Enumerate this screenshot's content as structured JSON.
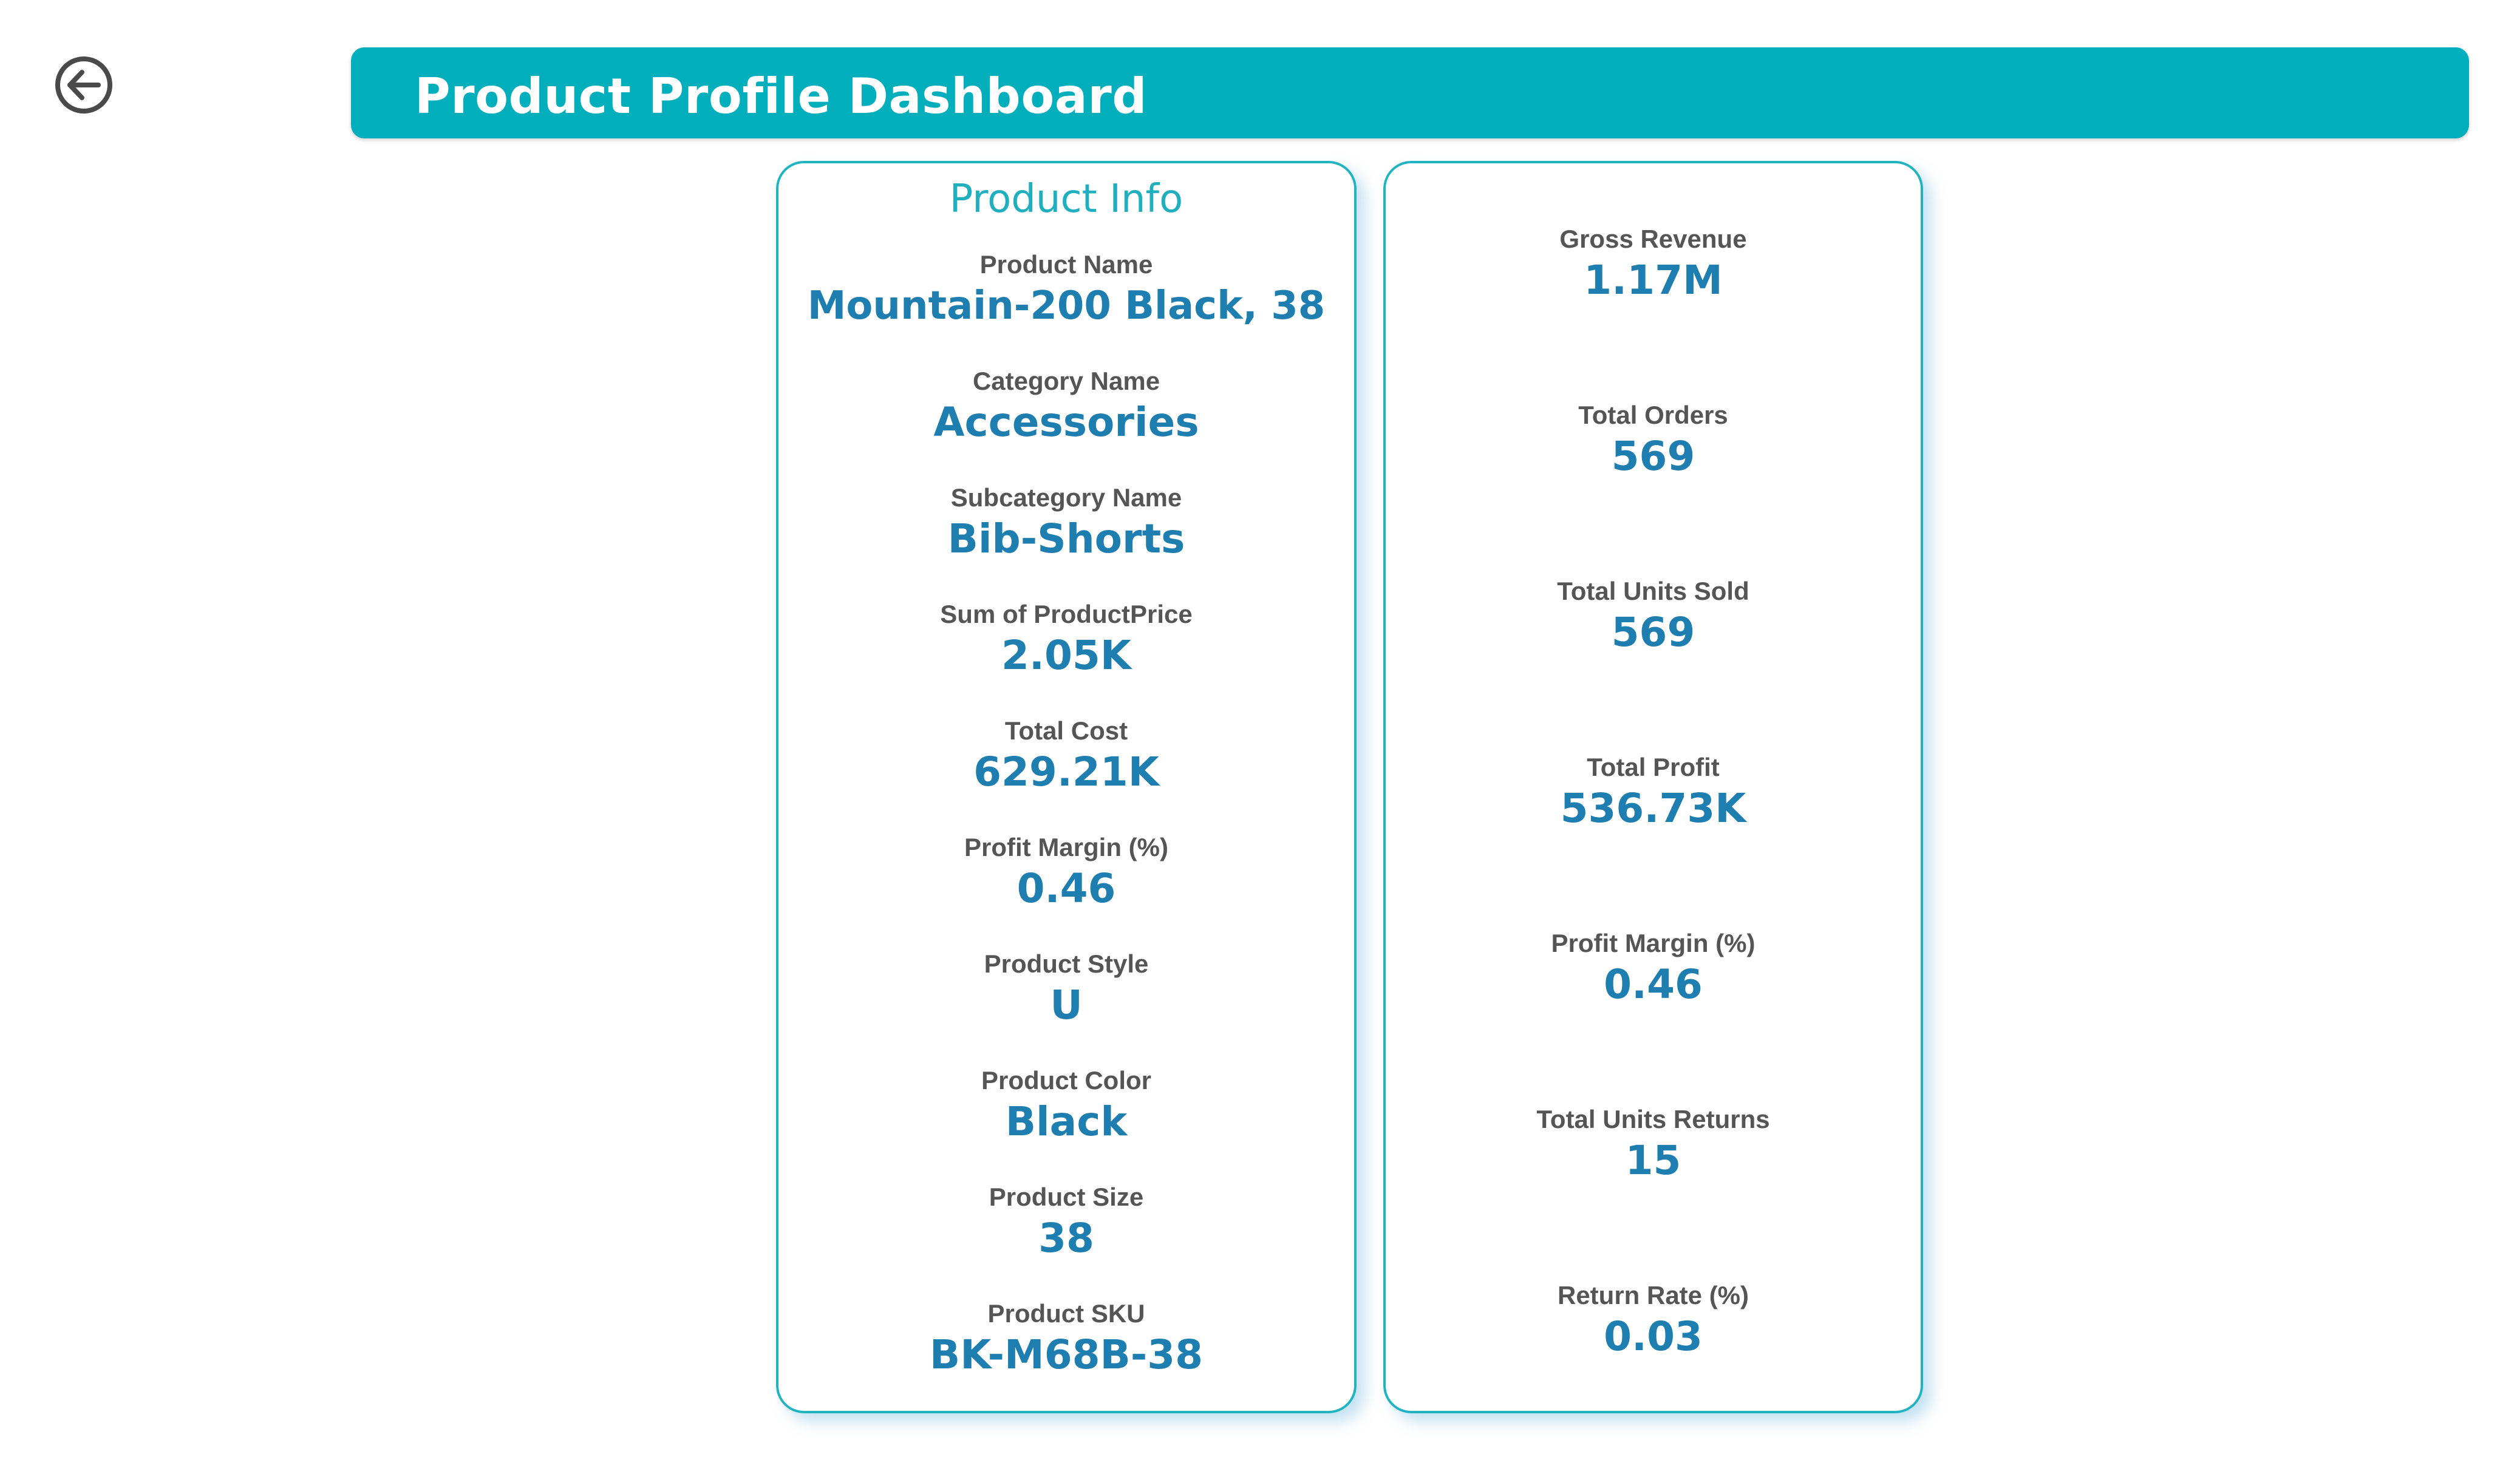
{
  "header": {
    "title": "Product Profile Dashboard"
  },
  "nav": {
    "back_icon": "arrow-left-circle-icon"
  },
  "product_info": {
    "title": "Product Info",
    "fields": [
      {
        "label": "Product Name",
        "value": "Mountain-200 Black, 38"
      },
      {
        "label": "Category Name",
        "value": "Accessories"
      },
      {
        "label": "Subcategory Name",
        "value": "Bib-Shorts"
      },
      {
        "label": "Sum of ProductPrice",
        "value": "2.05K"
      },
      {
        "label": "Total Cost",
        "value": "629.21K"
      },
      {
        "label": "Profit Margin (%)",
        "value": "0.46"
      },
      {
        "label": "Product Style",
        "value": "U"
      },
      {
        "label": "Product Color",
        "value": "Black"
      },
      {
        "label": "Product Size",
        "value": "38"
      },
      {
        "label": "Product SKU",
        "value": "BK-M68B-38"
      }
    ]
  },
  "kpis": {
    "fields": [
      {
        "label": "Gross Revenue",
        "value": "1.17M"
      },
      {
        "label": "Total Orders",
        "value": "569"
      },
      {
        "label": "Total Units Sold",
        "value": "569"
      },
      {
        "label": "Total Profit",
        "value": "536.73K"
      },
      {
        "label": "Profit Margin (%)",
        "value": "0.46"
      },
      {
        "label": "Total Units Returns",
        "value": "15"
      },
      {
        "label": "Return Rate (%)",
        "value": "0.03"
      }
    ]
  },
  "colors": {
    "header_bg": "#00AEBC",
    "card_border": "#22B3C1",
    "card_title": "#1FAFBE",
    "label": "#555555",
    "value": "#1F7EB0"
  }
}
